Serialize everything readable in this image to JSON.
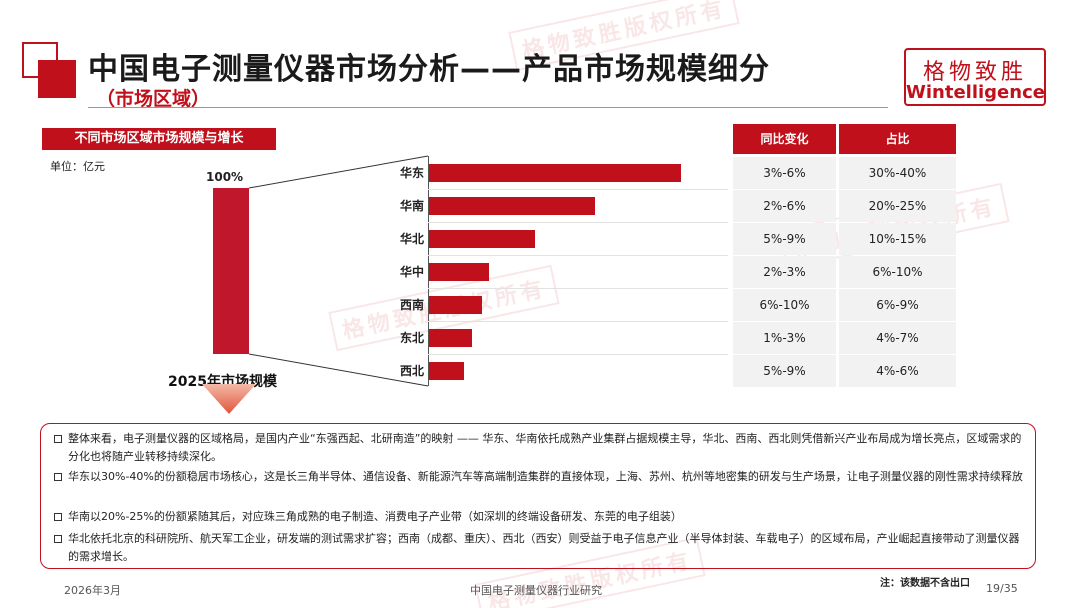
{
  "header": {
    "title": "中国电子测量仪器市场分析——产品市场规模细分",
    "subtitle": "（市场区域）",
    "logo_cn": "格物致胜",
    "logo_en": "Wintelligence"
  },
  "chart_section": {
    "header": "不同市场区域市场规模与增长",
    "unit": "单位：亿元",
    "total_label": "100%",
    "total_caption": "2025年市场规模"
  },
  "chart_data": {
    "type": "bar",
    "orientation": "horizontal",
    "categories": [
      "华东",
      "华南",
      "华北",
      "华中",
      "西南",
      "东北",
      "西北"
    ],
    "share_low_pct": [
      30,
      20,
      10,
      6,
      6,
      4,
      4
    ],
    "share_high_pct": [
      40,
      25,
      15,
      10,
      9,
      7,
      6
    ],
    "relative_scale_pct": [
      100,
      66,
      42,
      24,
      21,
      17,
      14
    ],
    "total_pct": 100
  },
  "table": {
    "headers": [
      "同比变化",
      "占比"
    ],
    "rows": [
      [
        "3%-6%",
        "30%-40%"
      ],
      [
        "2%-6%",
        "20%-25%"
      ],
      [
        "5%-9%",
        "10%-15%"
      ],
      [
        "2%-3%",
        "6%-10%"
      ],
      [
        "6%-10%",
        "6%-9%"
      ],
      [
        "1%-3%",
        "4%-7%"
      ],
      [
        "5%-9%",
        "4%-6%"
      ]
    ]
  },
  "notes": [
    "整体来看，电子测量仪器的区域格局，是国内产业“东强西起、北研南造”的映射 —— 华东、华南依托成熟产业集群占据规模主导，华北、西南、西北则凭借新兴产业布局成为增长亮点，区域需求的分化也将随产业转移持续深化。",
    "华东以30%-40%的份额稳居市场核心，这是长三角半导体、通信设备、新能源汽车等高端制造集群的直接体现，上海、苏州、杭州等地密集的研发与生产场景，让电子测量仪器的刚性需求持续释放",
    "华南以20%-25%的份额紧随其后，对应珠三角成熟的电子制造、消费电子产业带（如深圳的终端设备研发、东莞的电子组装）",
    "华北依托北京的科研院所、航天军工企业，研发端的测试需求扩容；西南（成都、重庆）、西北（西安）则受益于电子信息产业（半导体封装、车载电子）的区域布局，产业崛起直接带动了测量仪器的需求增长。"
  ],
  "footer": {
    "date": "2026年3月",
    "report": "中国电子测量仪器行业研究",
    "note": "注：该数据不含出口",
    "page": "19/35"
  },
  "watermark": "格物致胜版权所有",
  "colors": {
    "accent": "#c0101b",
    "bar": "#c0101b",
    "table_cell": "#f2f2f2"
  }
}
